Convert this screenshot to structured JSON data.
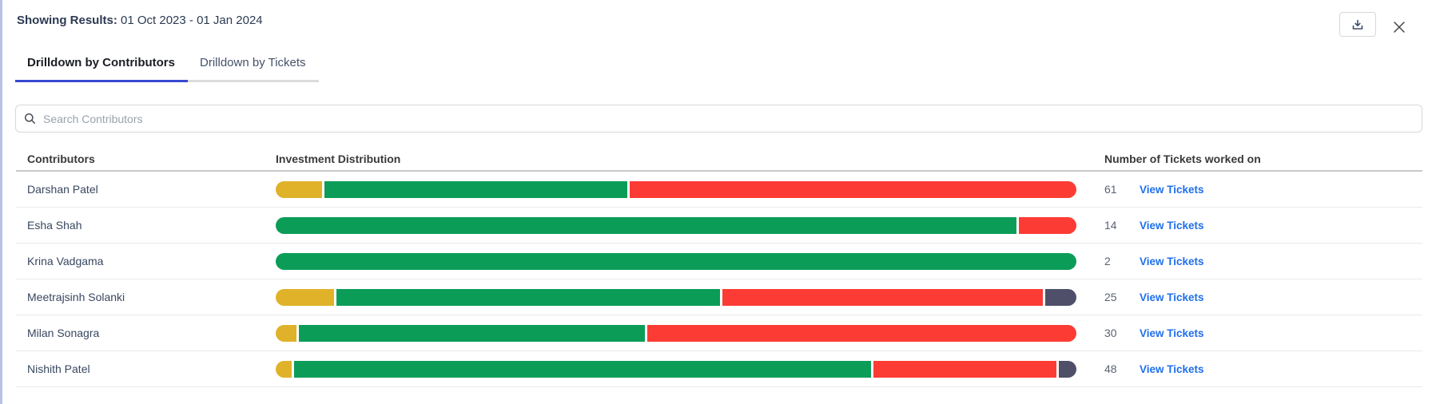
{
  "header": {
    "results_label": "Showing Results:",
    "date_range": "01 Oct 2023 - 01 Jan 2024"
  },
  "tabs": [
    {
      "label": "Drilldown by Contributors",
      "active": true
    },
    {
      "label": "Drilldown by Tickets",
      "active": false
    }
  ],
  "search": {
    "placeholder": "Search Contributors"
  },
  "table": {
    "columns": {
      "contributors": "Contributors",
      "distribution": "Investment Distribution",
      "tickets": "Number of Tickets worked on"
    },
    "link_label": "View Tickets",
    "rows": [
      {
        "name": "Darshan Patel",
        "tickets": "61",
        "segments": [
          {
            "color": "amber",
            "pct": 5.8
          },
          {
            "color": "green",
            "pct": 37.9
          },
          {
            "color": "red",
            "pct": 55.8
          }
        ]
      },
      {
        "name": "Esha Shah",
        "tickets": "14",
        "segments": [
          {
            "color": "green",
            "pct": 92.8
          },
          {
            "color": "red",
            "pct": 7.2
          }
        ]
      },
      {
        "name": "Krina Vadgama",
        "tickets": "2",
        "segments": [
          {
            "color": "green",
            "pct": 100
          }
        ]
      },
      {
        "name": "Meetrajsinh Solanki",
        "tickets": "25",
        "segments": [
          {
            "color": "amber",
            "pct": 7.3
          },
          {
            "color": "green",
            "pct": 47.9
          },
          {
            "color": "red",
            "pct": 40.1
          },
          {
            "color": "slate",
            "pct": 3.9
          }
        ]
      },
      {
        "name": "Milan Sonagra",
        "tickets": "30",
        "segments": [
          {
            "color": "amber",
            "pct": 2.6
          },
          {
            "color": "green",
            "pct": 43.4
          },
          {
            "color": "red",
            "pct": 53.9
          }
        ]
      },
      {
        "name": "Nishith Patel",
        "tickets": "48",
        "segments": [
          {
            "color": "amber",
            "pct": 2.0
          },
          {
            "color": "green",
            "pct": 72.4
          },
          {
            "color": "red",
            "pct": 23.0
          },
          {
            "color": "slate",
            "pct": 2.2
          }
        ]
      }
    ]
  },
  "colors": {
    "amber": "#E0B22A",
    "green": "#0B9D58",
    "red": "#FC3C34",
    "slate": "#4F4F69",
    "link_blue": "#1F6FEB",
    "tab_underline": "#3648D0"
  },
  "icons": {
    "download": "download-icon",
    "close": "close-icon",
    "search": "search-icon"
  }
}
